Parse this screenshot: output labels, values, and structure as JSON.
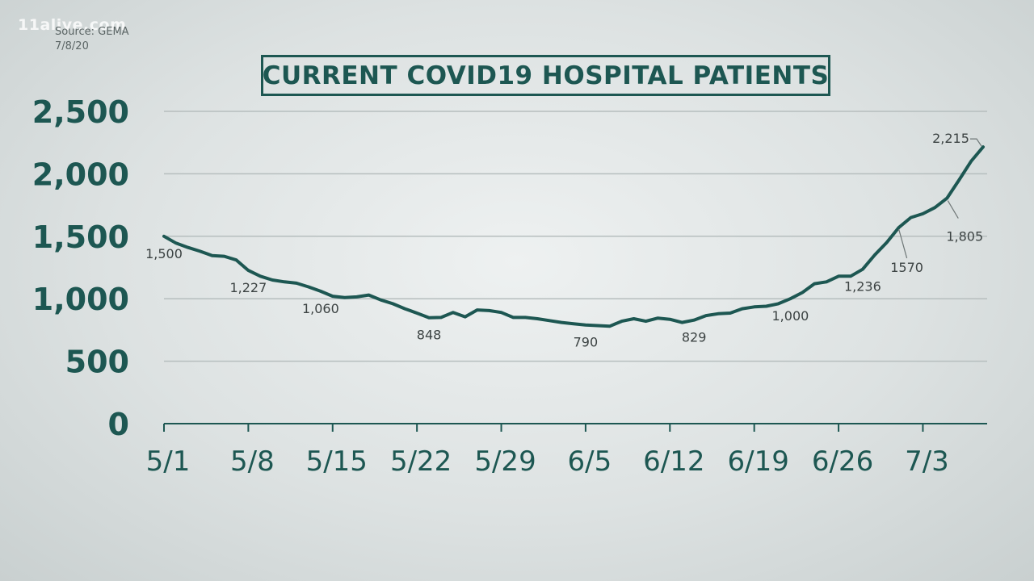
{
  "watermark": "11alive.com",
  "source_label": "Source: GEMA",
  "source_date": "7/8/20",
  "colors": {
    "line": "#1d5752",
    "grid": "#b6bebe",
    "axis_text": "#1d5752",
    "label_text": "#3c4343"
  },
  "chart_data": {
    "type": "line",
    "title": "CURRENT COVID19 HOSPITAL PATIENTS",
    "xlabel": "",
    "ylabel": "",
    "ylim": [
      0,
      2500
    ],
    "yticks": [
      0,
      500,
      1000,
      1500,
      2000,
      2500
    ],
    "ytick_labels": [
      "0",
      "500",
      "1,000",
      "1,500",
      "2,000",
      "2,500"
    ],
    "xticks": [
      0,
      7,
      14,
      21,
      28,
      35,
      42,
      49,
      56,
      63
    ],
    "xtick_labels": [
      "5/1",
      "5/8",
      "5/15",
      "5/22",
      "5/29",
      "6/5",
      "6/12",
      "6/19",
      "6/26",
      "7/3"
    ],
    "grid": true,
    "series": [
      {
        "name": "Current COVID19 hospital patients",
        "x": [
          0,
          1,
          2,
          3,
          4,
          5,
          6,
          7,
          8,
          9,
          10,
          11,
          12,
          13,
          14,
          15,
          16,
          17,
          18,
          19,
          20,
          21,
          22,
          23,
          24,
          25,
          26,
          27,
          28,
          29,
          30,
          31,
          32,
          33,
          34,
          35,
          36,
          37,
          38,
          39,
          40,
          41,
          42,
          43,
          44,
          45,
          46,
          47,
          48,
          49,
          50,
          51,
          52,
          53,
          54,
          55,
          56,
          57,
          58,
          59,
          60,
          61,
          62,
          63,
          64,
          65,
          66,
          67,
          68
        ],
        "values": [
          1500,
          1445,
          1410,
          1380,
          1345,
          1340,
          1310,
          1227,
          1180,
          1150,
          1135,
          1125,
          1095,
          1060,
          1020,
          1010,
          1015,
          1030,
          990,
          960,
          920,
          885,
          848,
          850,
          890,
          855,
          910,
          905,
          890,
          850,
          850,
          840,
          825,
          810,
          800,
          790,
          785,
          780,
          820,
          840,
          820,
          845,
          835,
          810,
          829,
          865,
          880,
          885,
          920,
          935,
          940,
          960,
          1000,
          1050,
          1120,
          1135,
          1180,
          1180,
          1236,
          1350,
          1450,
          1570,
          1650,
          1680,
          1730,
          1805,
          1950,
          2100,
          2215
        ]
      }
    ],
    "annotations": [
      {
        "x": 0,
        "y": 1500,
        "text": "1,500",
        "pos": "below"
      },
      {
        "x": 7,
        "y": 1227,
        "text": "1,227",
        "pos": "below"
      },
      {
        "x": 13,
        "y": 1060,
        "text": "1,060",
        "pos": "below"
      },
      {
        "x": 22,
        "y": 848,
        "text": "848",
        "pos": "below"
      },
      {
        "x": 35,
        "y": 790,
        "text": "790",
        "pos": "below"
      },
      {
        "x": 44,
        "y": 829,
        "text": "829",
        "pos": "below"
      },
      {
        "x": 52,
        "y": 1000,
        "text": "1,000",
        "pos": "below"
      },
      {
        "x": 58,
        "y": 1236,
        "text": "1,236",
        "pos": "below"
      },
      {
        "x": 61,
        "y": 1570,
        "text": "1570",
        "pos": "below-leader"
      },
      {
        "x": 65,
        "y": 1805,
        "text": "1,805",
        "pos": "below-right-leader"
      },
      {
        "x": 68,
        "y": 2215,
        "text": "2,215",
        "pos": "above-left-leader"
      }
    ]
  }
}
